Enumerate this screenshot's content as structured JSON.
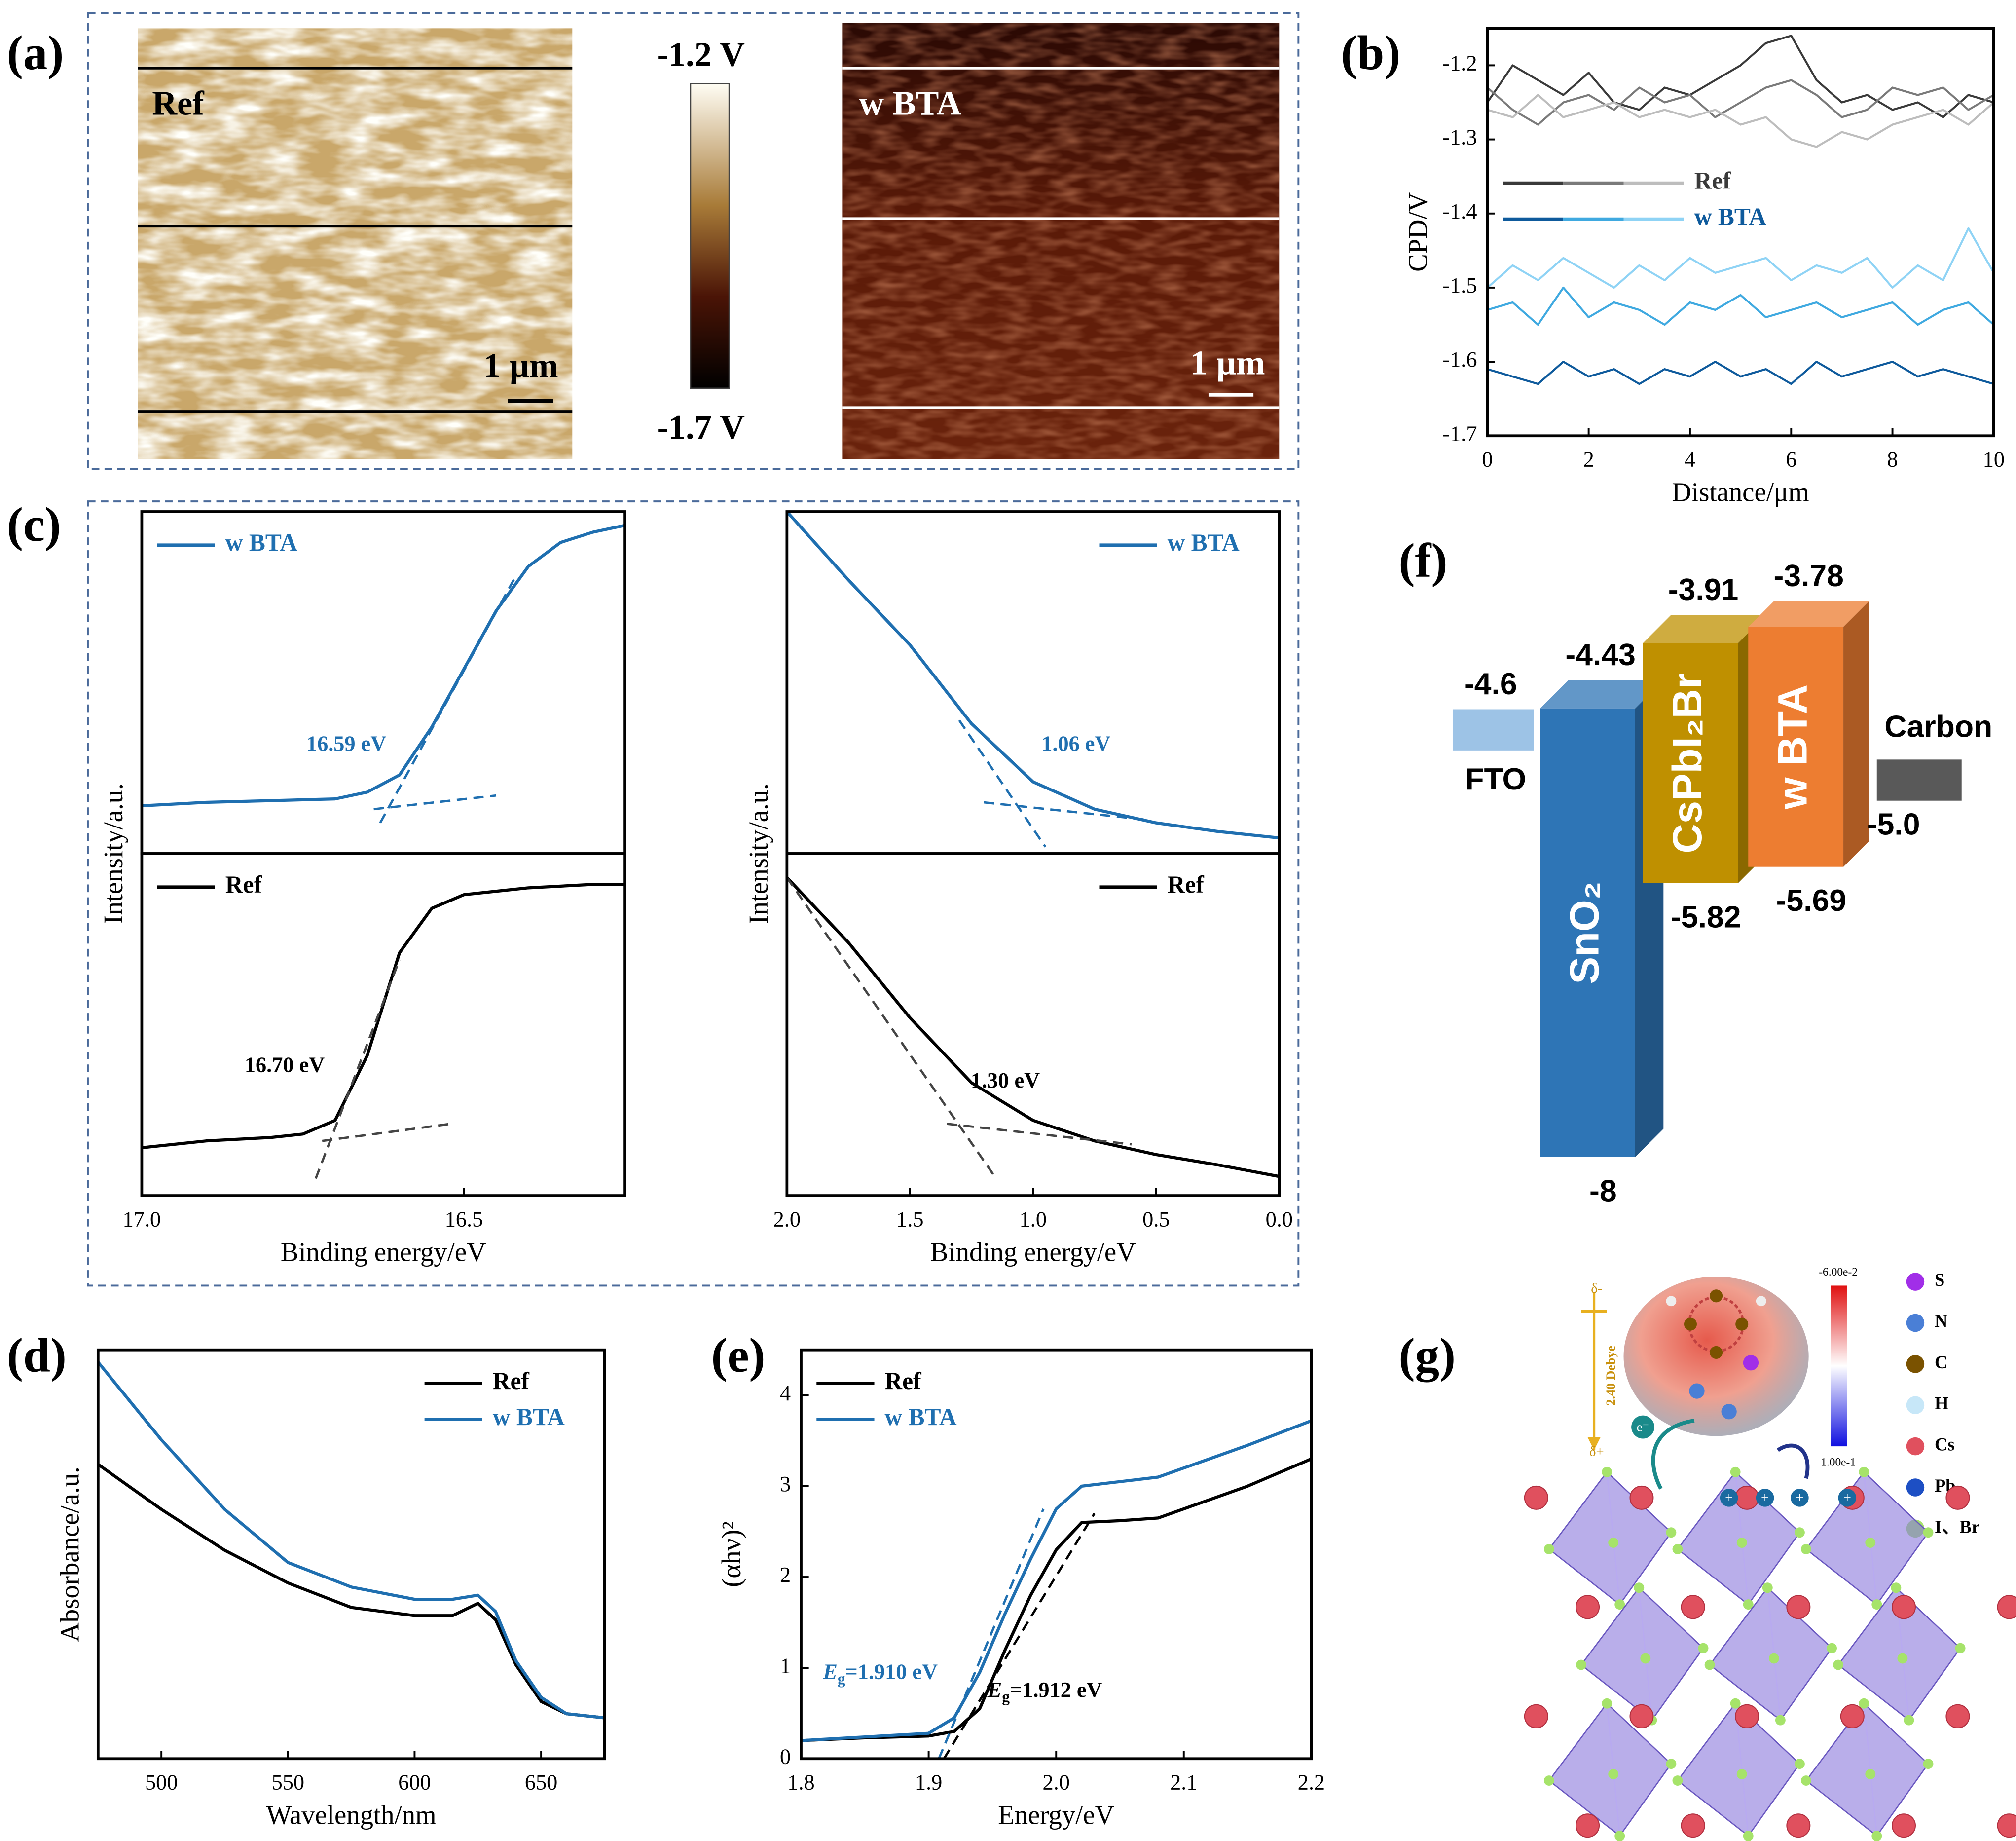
{
  "panel_labels": [
    "(a)",
    "(b)",
    "(c)",
    "(d)",
    "(e)",
    "(f)",
    "(g)"
  ],
  "afm": {
    "ref": "Ref",
    "bta": "w BTA",
    "scale": "1 μm",
    "cbar_max": "-1.2 V",
    "cbar_min": "-1.7 V"
  },
  "molecule": {
    "delta_minus": "δ-",
    "delta_plus": "δ+",
    "dipole": "2.40 Debye",
    "electron": "e⁻",
    "charge": "+",
    "cbar_max": "-6.00e-2",
    "cbar_min": "1.00e-1",
    "legend": [
      {
        "label": "S",
        "color": "#a12ee8"
      },
      {
        "label": "N",
        "color": "#4a7fd6"
      },
      {
        "label": "C",
        "color": "#7a5200"
      },
      {
        "label": "H",
        "color": "#c7e7f8"
      },
      {
        "label": "Cs",
        "color": "#e0505e"
      },
      {
        "label": "Pb",
        "color": "#1d4fc4"
      },
      {
        "label": "I、Br",
        "color": "#a6e36a"
      }
    ]
  },
  "chart_data": [
    {
      "type": "line",
      "xlabel": "Distance/μm",
      "ylabel": "CPD/V",
      "x": [
        0,
        0.5,
        1,
        1.5,
        2,
        2.5,
        3,
        3.5,
        4,
        4.5,
        5,
        5.5,
        6,
        6.5,
        7,
        7.5,
        8,
        8.5,
        9,
        9.5,
        10
      ],
      "xlim": [
        0,
        10
      ],
      "ylim": [
        -1.7,
        -1.15
      ],
      "xticks": [
        0,
        2,
        4,
        6,
        8,
        10
      ],
      "yticks": [
        -1.7,
        -1.6,
        -1.5,
        -1.4,
        -1.3,
        -1.2
      ],
      "legend": "center left",
      "series": [
        {
          "name": "Ref",
          "colors": [
            "#3a3a3a",
            "#7a7a7a",
            "#bdbdbd"
          ],
          "values": [
            [
              -1.25,
              -1.2,
              -1.22,
              -1.24,
              -1.21,
              -1.25,
              -1.26,
              -1.23,
              -1.24,
              -1.22,
              -1.2,
              -1.17,
              -1.16,
              -1.22,
              -1.25,
              -1.24,
              -1.26,
              -1.25,
              -1.27,
              -1.24,
              -1.25
            ],
            [
              -1.23,
              -1.26,
              -1.28,
              -1.25,
              -1.24,
              -1.26,
              -1.23,
              -1.25,
              -1.24,
              -1.27,
              -1.25,
              -1.23,
              -1.22,
              -1.24,
              -1.27,
              -1.26,
              -1.23,
              -1.24,
              -1.23,
              -1.26,
              -1.24
            ],
            [
              -1.26,
              -1.27,
              -1.24,
              -1.27,
              -1.26,
              -1.25,
              -1.27,
              -1.26,
              -1.27,
              -1.26,
              -1.28,
              -1.27,
              -1.3,
              -1.31,
              -1.29,
              -1.3,
              -1.28,
              -1.27,
              -1.26,
              -1.28,
              -1.25
            ]
          ]
        },
        {
          "name": "w BTA",
          "colors": [
            "#0e5a9c",
            "#3fa9e0",
            "#8fd3f5"
          ],
          "values": [
            [
              -1.61,
              -1.62,
              -1.63,
              -1.6,
              -1.62,
              -1.61,
              -1.63,
              -1.61,
              -1.62,
              -1.6,
              -1.62,
              -1.61,
              -1.63,
              -1.6,
              -1.62,
              -1.61,
              -1.6,
              -1.62,
              -1.61,
              -1.62,
              -1.63
            ],
            [
              -1.53,
              -1.52,
              -1.55,
              -1.5,
              -1.54,
              -1.52,
              -1.53,
              -1.55,
              -1.52,
              -1.53,
              -1.51,
              -1.54,
              -1.53,
              -1.52,
              -1.54,
              -1.53,
              -1.52,
              -1.55,
              -1.53,
              -1.52,
              -1.55
            ],
            [
              -1.5,
              -1.47,
              -1.49,
              -1.46,
              -1.48,
              -1.5,
              -1.47,
              -1.49,
              -1.46,
              -1.48,
              -1.47,
              -1.46,
              -1.49,
              -1.47,
              -1.48,
              -1.46,
              -1.5,
              -1.47,
              -1.49,
              -1.42,
              -1.48
            ]
          ]
        }
      ]
    },
    {
      "type": "line",
      "xlabel": "Binding energy/eV",
      "ylabel": "Intensity/a.u.",
      "xlim": [
        17,
        16.25
      ],
      "xticks": [
        {
          "value": 17,
          "label": "17.0"
        },
        16.5
      ],
      "panels": [
        {
          "ylim": [
            0,
            1
          ],
          "legend": "upper left",
          "annotation": "16.59 eV",
          "series": [
            {
              "name": "w BTA",
              "color": "#1f6fb0",
              "x": [
                17,
                16.9,
                16.8,
                16.7,
                16.65,
                16.6,
                16.55,
                16.5,
                16.45,
                16.4,
                16.35,
                16.3,
                16.25
              ],
              "values": [
                0.14,
                0.15,
                0.155,
                0.16,
                0.18,
                0.23,
                0.37,
                0.54,
                0.71,
                0.84,
                0.91,
                0.94,
                0.96
              ]
            },
            {
              "color": "#1f6fb0",
              "dash": true,
              "x": [
                16.64,
                16.45
              ],
              "values": [
                0.13,
                0.17
              ]
            },
            {
              "color": "#1f6fb0",
              "dash": true,
              "x": [
                16.63,
                16.42
              ],
              "values": [
                0.09,
                0.81
              ]
            }
          ]
        },
        {
          "ylim": [
            0,
            1
          ],
          "legend": "upper left",
          "annotation": "16.70 eV",
          "series": [
            {
              "name": "Ref",
              "color": "#000000",
              "x": [
                17,
                16.9,
                16.8,
                16.75,
                16.7,
                16.65,
                16.6,
                16.55,
                16.5,
                16.4,
                16.3,
                16.25
              ],
              "values": [
                0.14,
                0.16,
                0.17,
                0.18,
                0.22,
                0.41,
                0.71,
                0.84,
                0.88,
                0.9,
                0.91,
                0.91
              ]
            },
            {
              "color": "#444444",
              "dash": true,
              "x": [
                16.72,
                16.52
              ],
              "values": [
                0.16,
                0.21
              ]
            },
            {
              "color": "#444444",
              "dash": true,
              "x": [
                16.73,
                16.6
              ],
              "values": [
                0.05,
                0.69
              ]
            }
          ]
        }
      ]
    },
    {
      "type": "line",
      "xlabel": "Binding energy/eV",
      "ylabel": "Intensity/a.u.",
      "xlim": [
        2,
        0
      ],
      "xticks": [
        {
          "value": 2,
          "label": "2.0"
        },
        1.5,
        {
          "value": 1,
          "label": "1.0"
        },
        0.5,
        {
          "value": 0,
          "label": "0.0"
        }
      ],
      "panels": [
        {
          "ylim": [
            0,
            1
          ],
          "legend": "upper right",
          "annotation": "1.06 eV",
          "series": [
            {
              "name": "w BTA",
              "color": "#1f6fb0",
              "x": [
                2,
                1.75,
                1.5,
                1.25,
                1,
                0.75,
                0.5,
                0.25,
                0
              ],
              "values": [
                1,
                0.8,
                0.61,
                0.38,
                0.21,
                0.13,
                0.09,
                0.065,
                0.046
              ]
            },
            {
              "color": "#1f6fb0",
              "dash": true,
              "x": [
                1.3,
                0.95
              ],
              "values": [
                0.39,
                0.02
              ]
            },
            {
              "color": "#1f6fb0",
              "dash": true,
              "x": [
                1.2,
                0.55
              ],
              "values": [
                0.15,
                0.1
              ]
            }
          ]
        },
        {
          "ylim": [
            0,
            1
          ],
          "legend": "upper right",
          "annotation": "1.30 eV",
          "series": [
            {
              "name": "Ref",
              "color": "#000000",
              "x": [
                2,
                1.75,
                1.5,
                1.25,
                1,
                0.75,
                0.5,
                0.25,
                0
              ],
              "values": [
                0.93,
                0.74,
                0.52,
                0.33,
                0.22,
                0.16,
                0.12,
                0.09,
                0.056
              ]
            },
            {
              "color": "#444444",
              "dash": true,
              "x": [
                2,
                1.15
              ],
              "values": [
                0.93,
                0.05
              ]
            },
            {
              "color": "#444444",
              "dash": true,
              "x": [
                1.35,
                0.6
              ],
              "values": [
                0.21,
                0.15
              ]
            }
          ]
        }
      ]
    },
    {
      "type": "line",
      "xlabel": "Wavelength/nm",
      "ylabel": "Absorbance/a.u.",
      "x": [
        475,
        500,
        525,
        550,
        575,
        600,
        615,
        625,
        632,
        640,
        650,
        660,
        675
      ],
      "xlim": [
        475,
        675
      ],
      "ylim": [
        0,
        1
      ],
      "xticks": [
        500,
        550,
        600,
        650
      ],
      "legend": "upper right",
      "series": [
        {
          "name": "Ref",
          "color": "#000000",
          "values": [
            0.72,
            0.61,
            0.51,
            0.43,
            0.37,
            0.35,
            0.35,
            0.38,
            0.34,
            0.23,
            0.14,
            0.11,
            0.1
          ]
        },
        {
          "name": "w BTA",
          "color": "#1f6fb0",
          "values": [
            0.97,
            0.78,
            0.61,
            0.48,
            0.42,
            0.39,
            0.39,
            0.4,
            0.36,
            0.24,
            0.15,
            0.11,
            0.1
          ]
        }
      ]
    },
    {
      "type": "line",
      "xlabel": "Energy/eV",
      "ylabel": "(αhν)²",
      "x": [
        1.8,
        1.85,
        1.9,
        1.92,
        1.94,
        1.96,
        1.98,
        2,
        2.02,
        2.05,
        2.08,
        2.1,
        2.15,
        2.2
      ],
      "xlim": [
        1.8,
        2.2
      ],
      "ylim": [
        0,
        4.5
      ],
      "xticks": [
        1.8,
        1.9,
        {
          "value": 2,
          "label": "2.0"
        },
        2.1,
        2.2
      ],
      "yticks": [
        0,
        1,
        2,
        3,
        4
      ],
      "legend": "upper left",
      "annotations": [
        {
          "symbol": "E",
          "sub": "g",
          "text": "=1.910 eV",
          "color": "#1f6fb0"
        },
        {
          "symbol": "E",
          "sub": "g",
          "text": "=1.912 eV",
          "color": "#000000"
        }
      ],
      "series": [
        {
          "name": "Ref",
          "color": "#000000",
          "values": [
            0.2,
            0.23,
            0.25,
            0.3,
            0.55,
            1.2,
            1.8,
            2.3,
            2.6,
            2.62,
            2.65,
            2.75,
            3,
            3.3
          ]
        },
        {
          "name": "w BTA",
          "color": "#1f6fb0",
          "values": [
            0.2,
            0.24,
            0.28,
            0.45,
            0.95,
            1.6,
            2.2,
            2.75,
            3,
            3.05,
            3.1,
            3.2,
            3.45,
            3.72
          ]
        },
        {
          "color": "#1f6fb0",
          "dash": true,
          "x": [
            1.908,
            1.99
          ],
          "values": [
            0,
            2.75
          ]
        },
        {
          "color": "#000000",
          "dash": true,
          "x": [
            1.912,
            2.03
          ],
          "values": [
            0,
            2.7
          ]
        }
      ]
    },
    {
      "type": "energy-levels",
      "ylim": [
        -8,
        -3.6
      ],
      "levels": [
        {
          "name": "FTO",
          "value": -4.6,
          "color": "#9dc3e6"
        },
        {
          "name": "SnO₂",
          "top": -4.43,
          "bottom": -8,
          "color": "#2e75b6"
        },
        {
          "name": "CsPbI₂Br",
          "top": -3.91,
          "bottom": -5.82,
          "color": "#bf9000"
        },
        {
          "name": "w BTA",
          "top": -3.78,
          "bottom": -5.69,
          "color": "#ed7d31"
        },
        {
          "name": "Carbon",
          "value": -5,
          "value_label": "-5.0",
          "color": "#595959"
        }
      ]
    }
  ]
}
